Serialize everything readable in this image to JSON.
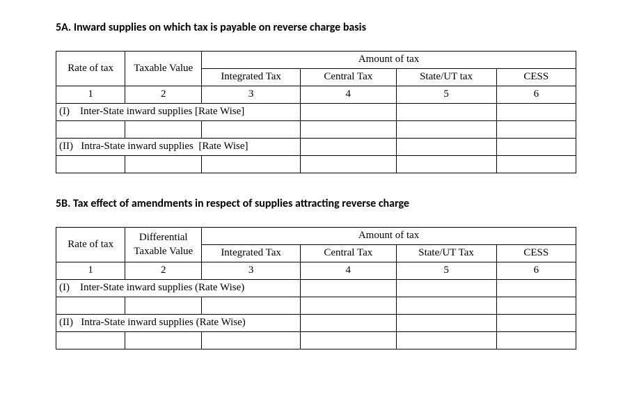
{
  "section5a": {
    "title": "5A. Inward supplies on which tax is payable on reverse charge basis",
    "header": {
      "rate_of_tax": "Rate of tax",
      "taxable_value": "Taxable Value",
      "amount_of_tax": "Amount of tax",
      "integrated_tax": "Integrated Tax",
      "central_tax": "Central Tax",
      "state_ut_tax": "State/UT tax",
      "cess": "CESS"
    },
    "colnums": {
      "c1": "1",
      "c2": "2",
      "c3": "3",
      "c4": "4",
      "c5": "5",
      "c6": "6"
    },
    "row_I": "(I)    Inter-State inward supplies [Rate Wise]",
    "row_II": "(II)   Intra-State inward supplies  [Rate Wise]"
  },
  "section5b": {
    "title": "5B. Tax effect of amendments in respect of supplies attracting reverse charge",
    "header": {
      "rate_of_tax": "Rate of tax",
      "diff_taxable_value": "Differential Taxable Value",
      "amount_of_tax": "Amount of tax",
      "integrated_tax": "Integrated Tax",
      "central_tax": "Central Tax",
      "state_ut_tax": "State/UT Tax",
      "cess": "CESS"
    },
    "colnums": {
      "c1": "1",
      "c2": "2",
      "c3": "3",
      "c4": "4",
      "c5": "5",
      "c6": "6"
    },
    "row_I": "(I)    Inter-State inward supplies (Rate Wise)",
    "row_II": "(II)   Intra-State inward supplies (Rate Wise)"
  }
}
